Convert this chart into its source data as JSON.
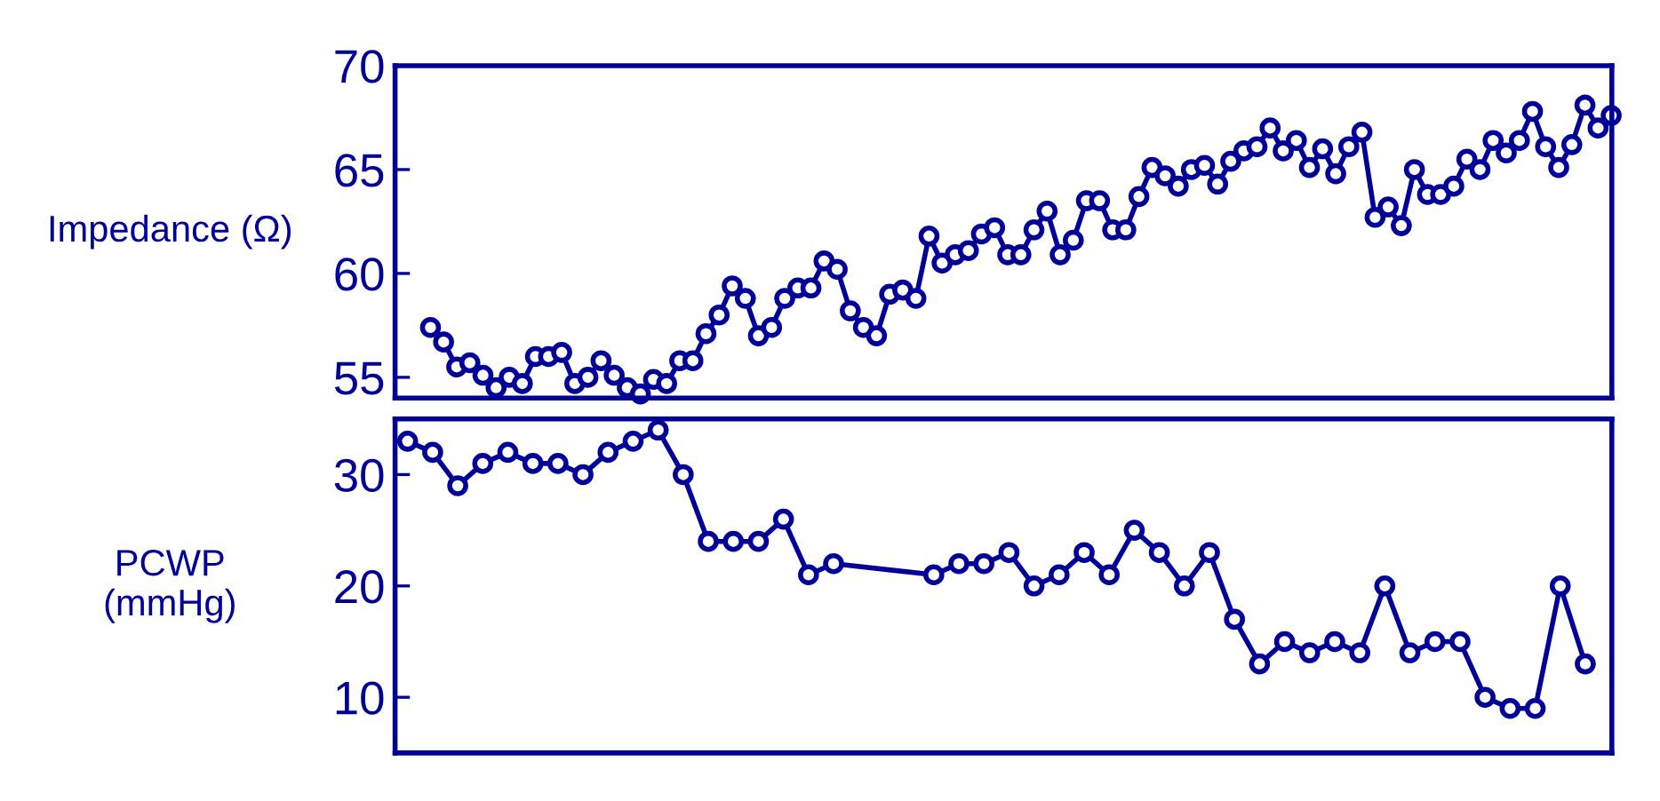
{
  "chart_data": [
    {
      "type": "line",
      "ylabel": "Impedance (Ω)",
      "categories": [
        null,
        null,
        null,
        null,
        null,
        null,
        null,
        null,
        null,
        null,
        null,
        null,
        null,
        null,
        null,
        null,
        null,
        null,
        null,
        null,
        null,
        null,
        null,
        null,
        null,
        null,
        null,
        null,
        null,
        null,
        null,
        null,
        null,
        null,
        null,
        null,
        null,
        null,
        null,
        null,
        null,
        null,
        null,
        null,
        null,
        null,
        null,
        null,
        null,
        null,
        null,
        null,
        null,
        null,
        null,
        null,
        null,
        null,
        null,
        null,
        null,
        null,
        null,
        null,
        null,
        null,
        null,
        null,
        null,
        null,
        null,
        null,
        null,
        null,
        null,
        null,
        null,
        null,
        null,
        null,
        null,
        null,
        null,
        null,
        null,
        null,
        null,
        null,
        null,
        null,
        null
      ],
      "ylim": [
        54,
        70
      ],
      "yticks": [
        55,
        60,
        65,
        70
      ],
      "tick_labels": "y",
      "marker": "circle",
      "line_style": "solid",
      "series": [
        {
          "color": "#000099",
          "values": [
            57.4,
            56.7,
            55.5,
            55.7,
            55.1,
            54.5,
            55.0,
            54.7,
            56.0,
            56.0,
            56.2,
            54.7,
            55.0,
            55.8,
            55.1,
            54.5,
            54.2,
            54.9,
            54.7,
            55.8,
            55.8,
            57.1,
            58.0,
            59.4,
            58.8,
            57.0,
            57.4,
            58.8,
            59.3,
            59.3,
            60.6,
            60.2,
            58.2,
            57.4,
            57.0,
            59.0,
            59.2,
            58.8,
            61.8,
            60.5,
            60.9,
            61.1,
            61.9,
            62.2,
            60.9,
            60.9,
            62.1,
            63.0,
            60.9,
            61.6,
            63.5,
            63.5,
            62.1,
            62.1,
            63.7,
            65.1,
            64.7,
            64.2,
            65.0,
            65.2,
            64.3,
            65.4,
            65.9,
            66.1,
            67.0,
            65.9,
            66.4,
            65.1,
            66.0,
            64.8,
            66.1,
            66.8,
            62.7,
            63.2,
            62.3,
            65.0,
            63.8,
            63.8,
            64.2,
            65.5,
            65.0,
            66.4,
            65.8,
            66.4,
            67.8,
            66.1,
            65.1,
            66.2,
            68.1,
            67.0,
            67.6
          ]
        }
      ]
    },
    {
      "type": "line",
      "ylabel": "PCWP\n(mmHg)",
      "categories": [
        null,
        null,
        null,
        null,
        null,
        null,
        null,
        null,
        null,
        null,
        null,
        null,
        null,
        null,
        null,
        null,
        null,
        null,
        null,
        null,
        null,
        null,
        null,
        null,
        null,
        null,
        null,
        null,
        null,
        null,
        null,
        null,
        null,
        null,
        null,
        null,
        null,
        null,
        null,
        null,
        null,
        null,
        null,
        null,
        null,
        null,
        null,
        null
      ],
      "ylim": [
        5,
        35
      ],
      "yticks": [
        10,
        20,
        30
      ],
      "tick_labels": "y",
      "marker": "circle",
      "line_style": "solid",
      "series": [
        {
          "color": "#000099",
          "values": [
            33,
            32,
            29,
            31,
            32,
            31,
            31,
            30,
            32,
            33,
            34,
            30,
            24,
            24,
            24,
            26,
            21,
            22,
            null,
            null,
            null,
            21,
            22,
            22,
            23,
            20,
            21,
            23,
            21,
            25,
            23,
            20,
            23,
            17,
            13,
            15,
            14,
            15,
            14,
            20,
            14,
            15,
            15,
            10,
            9,
            9,
            20,
            13
          ]
        }
      ]
    }
  ]
}
